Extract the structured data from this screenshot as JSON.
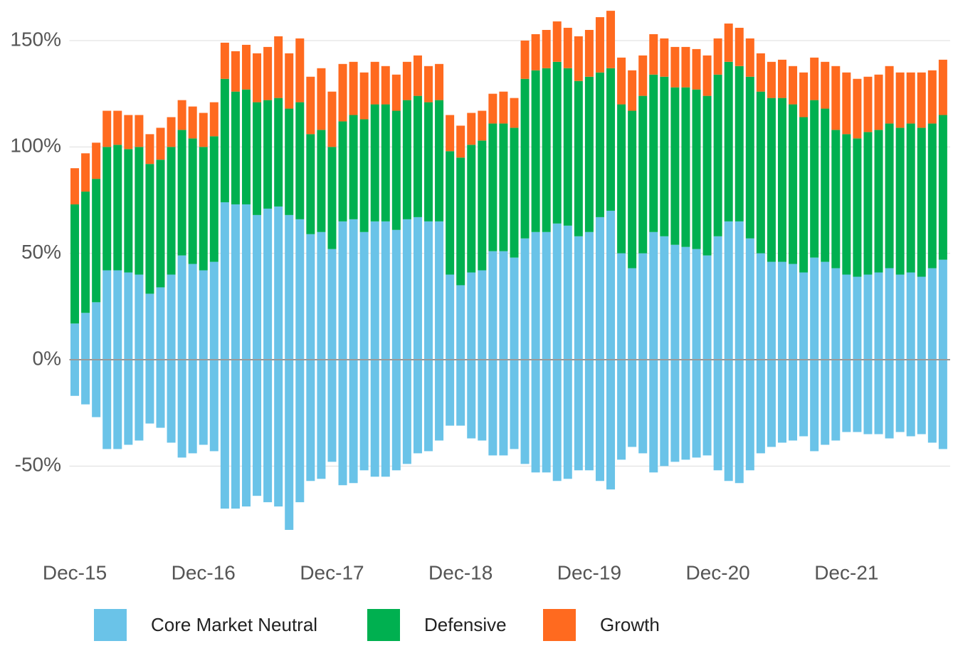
{
  "chart_data": {
    "type": "stacked_bar",
    "categories": [
      "Dec-15",
      null,
      null,
      null,
      null,
      null,
      null,
      null,
      null,
      null,
      null,
      null,
      "Dec-16",
      null,
      null,
      null,
      null,
      null,
      null,
      null,
      null,
      null,
      null,
      null,
      "Dec-17",
      null,
      null,
      null,
      null,
      null,
      null,
      null,
      null,
      null,
      null,
      null,
      "Dec-18",
      null,
      null,
      null,
      null,
      null,
      null,
      null,
      null,
      null,
      null,
      null,
      "Dec-19",
      null,
      null,
      null,
      null,
      null,
      null,
      null,
      null,
      null,
      null,
      null,
      "Dec-20",
      null,
      null,
      null,
      null,
      null,
      null,
      null,
      null,
      null,
      null,
      null,
      "Dec-21",
      null,
      null,
      null,
      null,
      null,
      null,
      null,
      null,
      null
    ],
    "series": [
      {
        "name": "Core Market Neutral",
        "color": "#6ac3e8",
        "values": [
          17,
          22,
          27,
          42,
          42,
          41,
          40,
          31,
          34,
          40,
          49,
          45,
          42,
          46,
          74,
          73,
          73,
          68,
          71,
          72,
          68,
          66,
          59,
          60,
          52,
          65,
          66,
          60,
          65,
          65,
          61,
          66,
          67,
          65,
          65,
          40,
          35,
          41,
          42,
          51,
          51,
          48,
          57,
          60,
          60,
          64,
          63,
          58,
          60,
          67,
          70,
          50,
          43,
          50,
          60,
          58,
          54,
          53,
          52,
          49,
          58,
          65,
          65,
          57,
          50,
          46,
          46,
          45,
          41,
          48,
          46,
          43,
          40,
          39,
          40,
          41,
          43,
          40,
          41,
          39,
          43,
          47
        ]
      },
      {
        "name": "Defensive",
        "color": "#00b050",
        "values": [
          56,
          57,
          58,
          58,
          59,
          58,
          60,
          61,
          60,
          60,
          59,
          59,
          58,
          59,
          58,
          53,
          54,
          53,
          51,
          51,
          50,
          55,
          47,
          48,
          48,
          47,
          49,
          53,
          55,
          55,
          56,
          56,
          57,
          56,
          57,
          58,
          60,
          60,
          61,
          60,
          60,
          61,
          75,
          76,
          77,
          76,
          74,
          73,
          73,
          68,
          67,
          70,
          74,
          74,
          74,
          75,
          74,
          75,
          75,
          75,
          76,
          75,
          73,
          76,
          76,
          77,
          77,
          75,
          73,
          74,
          72,
          65,
          66,
          65,
          67,
          67,
          68,
          69,
          70,
          70,
          68,
          68
        ]
      },
      {
        "name": "Growth",
        "color": "#ff6a1f",
        "values": [
          17,
          18,
          17,
          17,
          16,
          16,
          15,
          14,
          15,
          14,
          14,
          15,
          16,
          16,
          17,
          19,
          21,
          23,
          25,
          29,
          26,
          30,
          27,
          29,
          26,
          27,
          25,
          22,
          20,
          18,
          17,
          18,
          19,
          17,
          17,
          17,
          15,
          15,
          14,
          14,
          15,
          14,
          18,
          17,
          18,
          19,
          19,
          21,
          22,
          26,
          27,
          22,
          19,
          19,
          19,
          18,
          19,
          19,
          19,
          19,
          17,
          18,
          18,
          18,
          18,
          17,
          18,
          18,
          21,
          20,
          22,
          30,
          29,
          28,
          26,
          26,
          27,
          26,
          24,
          26,
          25,
          26
        ]
      },
      {
        "color": "#6ac3e8",
        "values": [
          -17,
          -21,
          -27,
          -42,
          -42,
          -40,
          -38,
          -30,
          -32,
          -39,
          -46,
          -44,
          -40,
          -43,
          -70,
          -70,
          -69,
          -64,
          -67,
          -69,
          -80,
          -67,
          -57,
          -56,
          -48,
          -59,
          -58,
          -52,
          -55,
          -55,
          -52,
          -49,
          -44,
          -43,
          -38,
          -31,
          -31,
          -37,
          -38,
          -45,
          -45,
          -42,
          -49,
          -53,
          -53,
          -57,
          -56,
          -52,
          -52,
          -57,
          -61,
          -47,
          -41,
          -44,
          -53,
          -50,
          -48,
          -47,
          -46,
          -45,
          -52,
          -57,
          -58,
          -52,
          -44,
          -41,
          -39,
          -38,
          -36,
          -43,
          -40,
          -38,
          -34,
          -34,
          -35,
          -35,
          -37,
          -34,
          -36,
          -35,
          -39,
          -42
        ]
      }
    ],
    "ylim": [
      -90,
      165
    ],
    "yticks": [
      {
        "value": -50,
        "label": "-50%"
      },
      {
        "value": 0,
        "label": "0%"
      },
      {
        "value": 50,
        "label": "50%"
      },
      {
        "value": 100,
        "label": "100%"
      },
      {
        "value": 150,
        "label": "150%"
      }
    ],
    "grid": true
  }
}
